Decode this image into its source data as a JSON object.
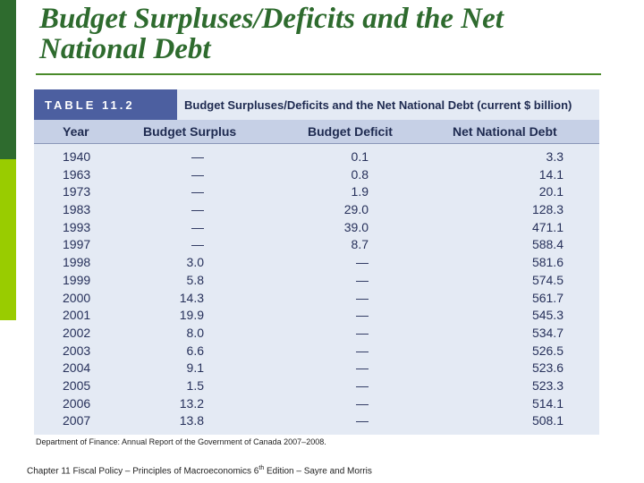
{
  "slide": {
    "title_line1": "Budget Surpluses/Deficits and the Net",
    "title_line2": "National Debt"
  },
  "table": {
    "label": "TABLE 11.2",
    "caption": "Budget Surpluses/Deficits and the Net National Debt (current $ billion)",
    "columns": [
      "Year",
      "Budget Surplus",
      "Budget Deficit",
      "Net National Debt"
    ],
    "rows": [
      [
        "1940",
        "—",
        "0.1",
        "3.3"
      ],
      [
        "1963",
        "—",
        "0.8",
        "14.1"
      ],
      [
        "1973",
        "—",
        "1.9",
        "20.1"
      ],
      [
        "1983",
        "—",
        "29.0",
        "128.3"
      ],
      [
        "1993",
        "—",
        "39.0",
        "471.1"
      ],
      [
        "1997",
        "—",
        "8.7",
        "588.4"
      ],
      [
        "1998",
        "3.0",
        "—",
        "581.6"
      ],
      [
        "1999",
        "5.8",
        "—",
        "574.5"
      ],
      [
        "2000",
        "14.3",
        "—",
        "561.7"
      ],
      [
        "2001",
        "19.9",
        "—",
        "545.3"
      ],
      [
        "2002",
        "8.0",
        "—",
        "534.7"
      ],
      [
        "2003",
        "6.6",
        "—",
        "526.5"
      ],
      [
        "2004",
        "9.1",
        "—",
        "523.6"
      ],
      [
        "2005",
        "1.5",
        "—",
        "523.3"
      ],
      [
        "2006",
        "13.2",
        "—",
        "514.1"
      ],
      [
        "2007",
        "13.8",
        "—",
        "508.1"
      ]
    ],
    "source": "Department of Finance: Annual Report of the Government of Canada 2007–2008."
  },
  "footer": {
    "text_before_sup": "Chapter 11 Fiscal Policy – Principles of Macroeconomics 6",
    "sup": "th",
    "text_after_sup": " Edition – Sayre and Morris"
  },
  "colors": {
    "accent_dark_green": "#2e6b2e",
    "accent_light_green": "#99cc00",
    "table_label_blue": "#4c5fa0",
    "table_background": "#e4eaf4"
  }
}
